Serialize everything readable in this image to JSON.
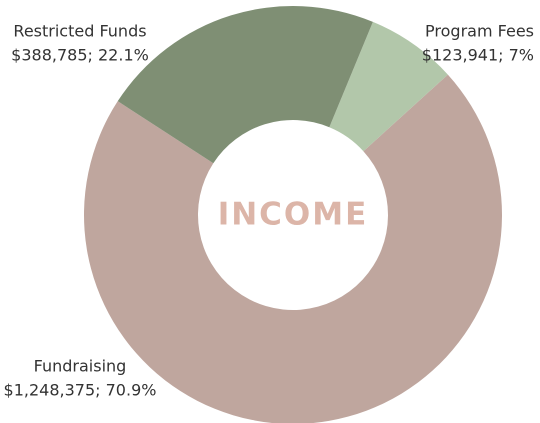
{
  "chart_data": {
    "type": "donut",
    "center_label": "INCOME",
    "categories": [
      "Restricted Funds",
      "Program Fees",
      "Fundraising"
    ],
    "values": [
      388785,
      123941,
      1248375
    ],
    "value_labels": [
      "$388,785; 22.1%",
      "$123,941; 7%",
      "$1,248,375; 70.9%"
    ],
    "colors": [
      "#7f8f74",
      "#b2c7aa",
      "#bfa69e"
    ]
  }
}
